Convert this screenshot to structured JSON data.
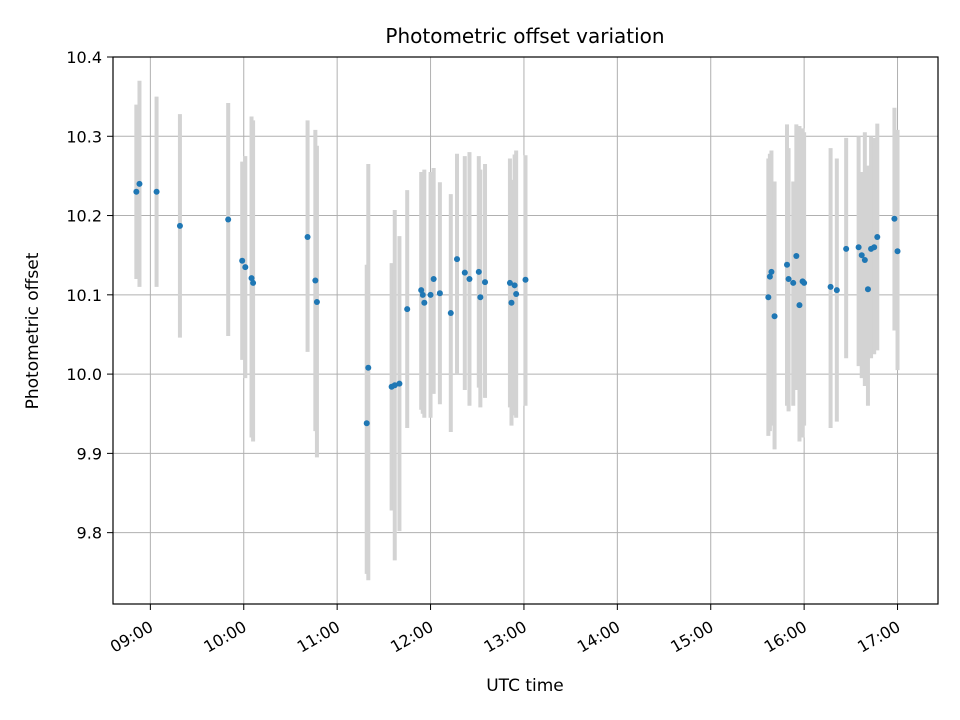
{
  "chart_data": {
    "type": "scatter",
    "title": "Photometric offset variation",
    "xlabel": "UTC time",
    "ylabel": "Photometric offset",
    "x_unit": "UTC hh:mm",
    "xlim": [
      "08:36",
      "17:26"
    ],
    "ylim": [
      9.71,
      10.4
    ],
    "x_ticks": [
      "09:00",
      "10:00",
      "11:00",
      "12:00",
      "13:00",
      "14:00",
      "15:00",
      "16:00",
      "17:00"
    ],
    "y_ticks": [
      "9.8",
      "9.9",
      "10.0",
      "10.1",
      "10.2",
      "10.3",
      "10.4"
    ],
    "grid": true,
    "colors": {
      "point": "#1f77b4",
      "errorbar": "#d3d3d3",
      "grid": "#b0b0b0",
      "axis": "#000000"
    },
    "series": [
      {
        "points": [
          {
            "x": "08:51",
            "y": 10.23,
            "lo": 10.12,
            "hi": 10.34
          },
          {
            "x": "08:53",
            "y": 10.24,
            "lo": 10.11,
            "hi": 10.37
          },
          {
            "x": "09:04",
            "y": 10.23,
            "lo": 10.11,
            "hi": 10.35
          },
          {
            "x": "09:19",
            "y": 10.187,
            "lo": 10.046,
            "hi": 10.328
          },
          {
            "x": "09:50",
            "y": 10.195,
            "lo": 10.048,
            "hi": 10.342
          },
          {
            "x": "09:59",
            "y": 10.143,
            "lo": 10.018,
            "hi": 10.268
          },
          {
            "x": "10:01",
            "y": 10.135,
            "lo": 9.995,
            "hi": 10.275
          },
          {
            "x": "10:05",
            "y": 10.121,
            "lo": 9.92,
            "hi": 10.325
          },
          {
            "x": "10:06",
            "y": 10.115,
            "lo": 9.915,
            "hi": 10.32
          },
          {
            "x": "10:41",
            "y": 10.173,
            "lo": 10.028,
            "hi": 10.32
          },
          {
            "x": "10:46",
            "y": 10.118,
            "lo": 9.928,
            "hi": 10.308
          },
          {
            "x": "10:47",
            "y": 10.091,
            "lo": 9.895,
            "hi": 10.288
          },
          {
            "x": "11:19",
            "y": 9.938,
            "lo": 9.748,
            "hi": 10.138
          },
          {
            "x": "11:20",
            "y": 10.008,
            "lo": 9.74,
            "hi": 10.265
          },
          {
            "x": "11:35",
            "y": 9.984,
            "lo": 9.828,
            "hi": 10.14
          },
          {
            "x": "11:37",
            "y": 9.986,
            "lo": 9.765,
            "hi": 10.207
          },
          {
            "x": "11:40",
            "y": 9.988,
            "lo": 9.802,
            "hi": 10.174
          },
          {
            "x": "11:45",
            "y": 10.082,
            "lo": 9.932,
            "hi": 10.232
          },
          {
            "x": "11:54",
            "y": 10.106,
            "lo": 9.955,
            "hi": 10.255
          },
          {
            "x": "11:55",
            "y": 10.1,
            "lo": 9.95,
            "hi": 10.25
          },
          {
            "x": "11:56",
            "y": 10.09,
            "lo": 9.945,
            "hi": 10.258
          },
          {
            "x": "12:00",
            "y": 10.1,
            "lo": 9.945,
            "hi": 10.255
          },
          {
            "x": "12:02",
            "y": 10.12,
            "lo": 9.975,
            "hi": 10.26
          },
          {
            "x": "12:06",
            "y": 10.102,
            "lo": 9.962,
            "hi": 10.242
          },
          {
            "x": "12:13",
            "y": 10.077,
            "lo": 9.927,
            "hi": 10.227
          },
          {
            "x": "12:17",
            "y": 10.145,
            "lo": 10.0,
            "hi": 10.278
          },
          {
            "x": "12:22",
            "y": 10.128,
            "lo": 9.98,
            "hi": 10.275
          },
          {
            "x": "12:25",
            "y": 10.12,
            "lo": 9.96,
            "hi": 10.28
          },
          {
            "x": "12:31",
            "y": 10.129,
            "lo": 9.983,
            "hi": 10.275
          },
          {
            "x": "12:32",
            "y": 10.097,
            "lo": 9.958,
            "hi": 10.258
          },
          {
            "x": "12:35",
            "y": 10.116,
            "lo": 9.97,
            "hi": 10.265
          },
          {
            "x": "12:51",
            "y": 10.115,
            "lo": 9.958,
            "hi": 10.272
          },
          {
            "x": "12:52",
            "y": 10.09,
            "lo": 9.935,
            "hi": 10.245
          },
          {
            "x": "12:54",
            "y": 10.112,
            "lo": 9.948,
            "hi": 10.277
          },
          {
            "x": "12:55",
            "y": 10.101,
            "lo": 9.945,
            "hi": 10.282
          },
          {
            "x": "13:01",
            "y": 10.119,
            "lo": 9.96,
            "hi": 10.276
          },
          {
            "x": "15:37",
            "y": 10.097,
            "lo": 9.922,
            "hi": 10.272
          },
          {
            "x": "15:38",
            "y": 10.123,
            "lo": 9.928,
            "hi": 10.278
          },
          {
            "x": "15:39",
            "y": 10.129,
            "lo": 9.935,
            "hi": 10.282
          },
          {
            "x": "15:41",
            "y": 10.073,
            "lo": 9.905,
            "hi": 10.243
          },
          {
            "x": "15:49",
            "y": 10.138,
            "lo": 9.96,
            "hi": 10.315
          },
          {
            "x": "15:50",
            "y": 10.12,
            "lo": 9.953,
            "hi": 10.285
          },
          {
            "x": "15:53",
            "y": 10.115,
            "lo": 9.96,
            "hi": 10.243
          },
          {
            "x": "15:55",
            "y": 10.149,
            "lo": 9.98,
            "hi": 10.315
          },
          {
            "x": "15:57",
            "y": 10.087,
            "lo": 9.915,
            "hi": 10.313
          },
          {
            "x": "15:59",
            "y": 10.117,
            "lo": 9.92,
            "hi": 10.31
          },
          {
            "x": "16:00",
            "y": 10.115,
            "lo": 9.935,
            "hi": 10.305
          },
          {
            "x": "16:17",
            "y": 10.11,
            "lo": 9.932,
            "hi": 10.285
          },
          {
            "x": "16:21",
            "y": 10.106,
            "lo": 9.94,
            "hi": 10.272
          },
          {
            "x": "16:27",
            "y": 10.158,
            "lo": 10.02,
            "hi": 10.298
          },
          {
            "x": "16:35",
            "y": 10.16,
            "lo": 10.01,
            "hi": 10.3
          },
          {
            "x": "16:37",
            "y": 10.15,
            "lo": 9.995,
            "hi": 10.255
          },
          {
            "x": "16:39",
            "y": 10.144,
            "lo": 9.985,
            "hi": 10.305
          },
          {
            "x": "16:41",
            "y": 10.107,
            "lo": 9.96,
            "hi": 10.263
          },
          {
            "x": "16:43",
            "y": 10.158,
            "lo": 10.02,
            "hi": 10.3
          },
          {
            "x": "16:45",
            "y": 10.16,
            "lo": 10.025,
            "hi": 10.298
          },
          {
            "x": "16:47",
            "y": 10.173,
            "lo": 10.03,
            "hi": 10.316
          },
          {
            "x": "16:58",
            "y": 10.196,
            "lo": 10.055,
            "hi": 10.336
          },
          {
            "x": "17:00",
            "y": 10.155,
            "lo": 10.005,
            "hi": 10.308
          }
        ]
      }
    ]
  }
}
